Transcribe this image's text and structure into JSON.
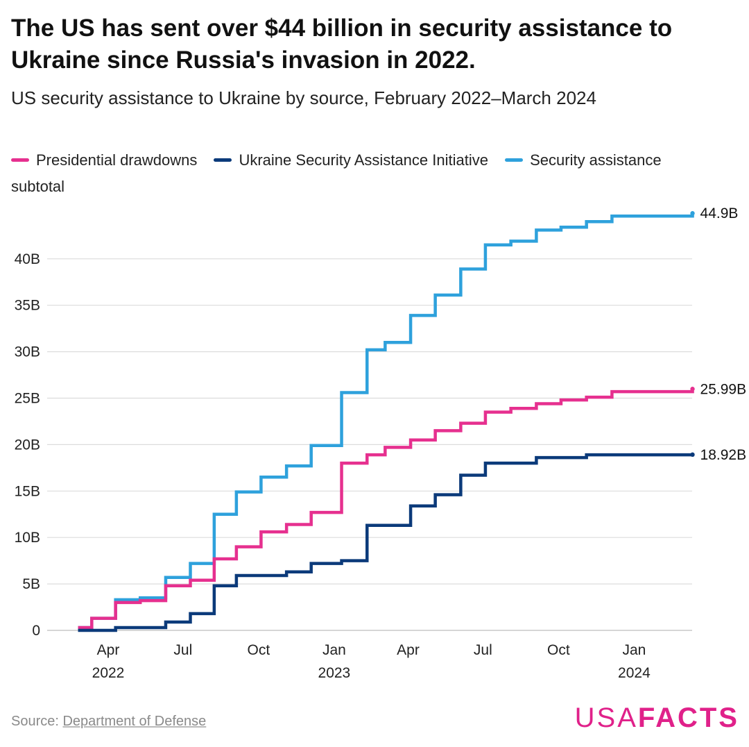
{
  "header": {
    "title": "The US has sent over $44 billion in security assistance to Ukraine since Russia's invasion in 2022.",
    "subtitle": "US security assistance to Ukraine by source, February 2022–March 2024"
  },
  "legend": {
    "items": [
      {
        "label": "Presidential drawdowns",
        "color": "#e6308f"
      },
      {
        "label": "Ukraine Security Assistance Initiative",
        "color": "#0b3a7a"
      },
      {
        "label": "Security assistance",
        "color": "#2ea1dc"
      }
    ],
    "continuation": "subtotal"
  },
  "chart_data": {
    "type": "line",
    "step": true,
    "x_type": "date",
    "ylim": [
      0,
      45
    ],
    "yticks": [
      {
        "value": 0,
        "label": "0"
      },
      {
        "value": 5,
        "label": "5B"
      },
      {
        "value": 10,
        "label": "10B"
      },
      {
        "value": 15,
        "label": "15B"
      },
      {
        "value": 20,
        "label": "20B"
      },
      {
        "value": 25,
        "label": "25B"
      },
      {
        "value": 30,
        "label": "30B"
      },
      {
        "value": 35,
        "label": "35B"
      },
      {
        "value": 40,
        "label": "40B"
      }
    ],
    "xticks": [
      {
        "date": "2022-04-01",
        "label": "Apr",
        "year": "2022"
      },
      {
        "date": "2022-07-01",
        "label": "Jul",
        "year": ""
      },
      {
        "date": "2022-10-01",
        "label": "Oct",
        "year": ""
      },
      {
        "date": "2023-01-01",
        "label": "Jan",
        "year": "2023"
      },
      {
        "date": "2023-04-01",
        "label": "Apr",
        "year": ""
      },
      {
        "date": "2023-07-01",
        "label": "Jul",
        "year": ""
      },
      {
        "date": "2023-10-01",
        "label": "Oct",
        "year": ""
      },
      {
        "date": "2024-01-01",
        "label": "Jan",
        "year": "2024"
      }
    ],
    "grid": true,
    "series": [
      {
        "name": "Security assistance subtotal",
        "color": "#2ea1dc",
        "end_label": "44.9B",
        "points": [
          [
            "2022-02-25",
            0.3
          ],
          [
            "2022-03-12",
            1.3
          ],
          [
            "2022-04-10",
            3.3
          ],
          [
            "2022-05-10",
            3.5
          ],
          [
            "2022-06-10",
            5.7
          ],
          [
            "2022-07-10",
            7.2
          ],
          [
            "2022-08-08",
            12.5
          ],
          [
            "2022-09-04",
            14.9
          ],
          [
            "2022-10-04",
            16.5
          ],
          [
            "2022-11-04",
            17.7
          ],
          [
            "2022-12-04",
            19.9
          ],
          [
            "2023-01-10",
            25.6
          ],
          [
            "2023-02-10",
            30.2
          ],
          [
            "2023-03-04",
            31.0
          ],
          [
            "2023-04-04",
            33.9
          ],
          [
            "2023-05-04",
            36.1
          ],
          [
            "2023-06-04",
            38.9
          ],
          [
            "2023-07-04",
            41.5
          ],
          [
            "2023-08-04",
            41.9
          ],
          [
            "2023-09-04",
            43.1
          ],
          [
            "2023-10-04",
            43.4
          ],
          [
            "2023-11-04",
            44.0
          ],
          [
            "2023-12-05",
            44.6
          ],
          [
            "2024-03-12",
            44.9
          ]
        ]
      },
      {
        "name": "Presidential drawdowns",
        "color": "#e6308f",
        "end_label": "25.99B",
        "points": [
          [
            "2022-02-25",
            0.3
          ],
          [
            "2022-03-12",
            1.3
          ],
          [
            "2022-04-10",
            3.0
          ],
          [
            "2022-05-10",
            3.2
          ],
          [
            "2022-06-10",
            4.8
          ],
          [
            "2022-07-10",
            5.4
          ],
          [
            "2022-08-08",
            7.7
          ],
          [
            "2022-09-04",
            9.0
          ],
          [
            "2022-10-04",
            10.6
          ],
          [
            "2022-11-04",
            11.4
          ],
          [
            "2022-12-04",
            12.7
          ],
          [
            "2023-01-10",
            18.0
          ],
          [
            "2023-02-10",
            18.9
          ],
          [
            "2023-03-04",
            19.7
          ],
          [
            "2023-04-04",
            20.5
          ],
          [
            "2023-05-04",
            21.5
          ],
          [
            "2023-06-04",
            22.3
          ],
          [
            "2023-07-04",
            23.5
          ],
          [
            "2023-08-04",
            23.9
          ],
          [
            "2023-09-04",
            24.4
          ],
          [
            "2023-10-04",
            24.8
          ],
          [
            "2023-11-04",
            25.1
          ],
          [
            "2023-12-05",
            25.7
          ],
          [
            "2024-03-12",
            25.99
          ]
        ]
      },
      {
        "name": "Ukraine Security Assistance Initiative",
        "color": "#0b3a7a",
        "end_label": "18.92B",
        "points": [
          [
            "2022-02-25",
            0.0
          ],
          [
            "2022-04-10",
            0.3
          ],
          [
            "2022-06-10",
            0.9
          ],
          [
            "2022-07-10",
            1.8
          ],
          [
            "2022-08-08",
            4.8
          ],
          [
            "2022-09-04",
            5.9
          ],
          [
            "2022-11-04",
            6.3
          ],
          [
            "2022-12-04",
            7.2
          ],
          [
            "2023-01-10",
            7.5
          ],
          [
            "2023-02-10",
            11.3
          ],
          [
            "2023-04-04",
            13.4
          ],
          [
            "2023-05-04",
            14.6
          ],
          [
            "2023-06-04",
            16.7
          ],
          [
            "2023-07-04",
            18.0
          ],
          [
            "2023-09-04",
            18.6
          ],
          [
            "2023-11-04",
            18.9
          ],
          [
            "2024-03-12",
            18.92
          ]
        ]
      }
    ]
  },
  "footer": {
    "source_prefix": "Source: ",
    "source_link": "Department of Defense",
    "logo_usa": "USA",
    "logo_facts": "FACTS"
  }
}
